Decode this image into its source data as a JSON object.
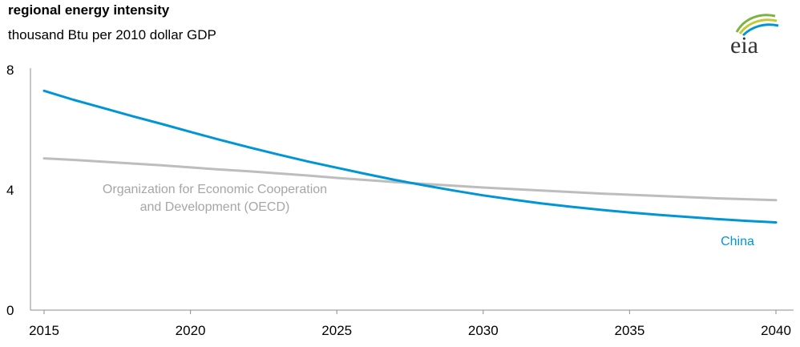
{
  "header": {
    "title": "regional energy intensity",
    "subtitle": "thousand Btu per 2010 dollar GDP"
  },
  "logo": {
    "text": "eia",
    "icon": "eia-logo-icon"
  },
  "colors": {
    "china": "#0096D6",
    "oecd": "#BDBDBD",
    "axis": "#8C8C8C"
  },
  "chart_data": {
    "type": "line",
    "title": "regional energy intensity",
    "subtitle": "thousand Btu per 2010 dollar GDP",
    "xlabel": "",
    "ylabel": "",
    "xlim": [
      2015,
      2040
    ],
    "ylim": [
      0,
      8
    ],
    "x_ticks": [
      "2015",
      "2020",
      "2025",
      "2030",
      "2035",
      "2040"
    ],
    "y_ticks": [
      "0",
      "4",
      "8"
    ],
    "grid": false,
    "x": [
      2015,
      2016,
      2017,
      2018,
      2019,
      2020,
      2021,
      2022,
      2023,
      2024,
      2025,
      2026,
      2027,
      2028,
      2029,
      2030,
      2031,
      2032,
      2033,
      2034,
      2035,
      2036,
      2037,
      2038,
      2039,
      2040
    ],
    "series": [
      {
        "name": "China",
        "label": "China",
        "color": "#0096D6",
        "values": [
          7.3,
          7.0,
          6.73,
          6.46,
          6.2,
          5.93,
          5.67,
          5.42,
          5.18,
          4.95,
          4.74,
          4.53,
          4.33,
          4.15,
          3.98,
          3.82,
          3.68,
          3.55,
          3.44,
          3.34,
          3.25,
          3.17,
          3.1,
          3.03,
          2.97,
          2.92
        ]
      },
      {
        "name": "Organization for Economic Cooperation and Development (OECD)",
        "label_lines": [
          "Organization for Economic Cooperation",
          "and Development (OECD)"
        ],
        "color": "#BDBDBD",
        "values": [
          5.05,
          5.0,
          4.94,
          4.88,
          4.82,
          4.75,
          4.68,
          4.62,
          4.55,
          4.48,
          4.4,
          4.33,
          4.26,
          4.2,
          4.14,
          4.08,
          4.03,
          3.98,
          3.93,
          3.88,
          3.84,
          3.8,
          3.76,
          3.72,
          3.69,
          3.66
        ]
      }
    ]
  }
}
